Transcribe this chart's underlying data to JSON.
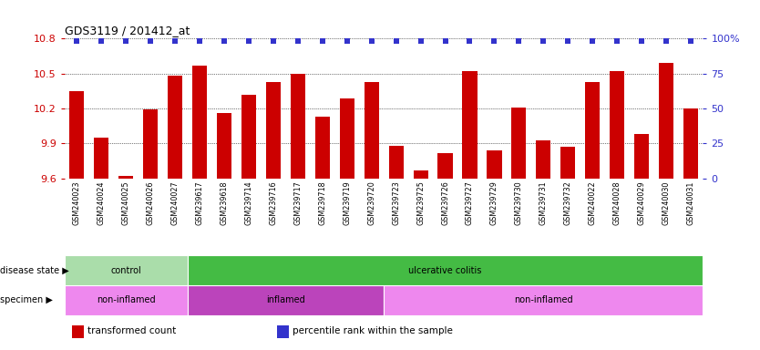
{
  "title": "GDS3119 / 201412_at",
  "samples": [
    "GSM240023",
    "GSM240024",
    "GSM240025",
    "GSM240026",
    "GSM240027",
    "GSM239617",
    "GSM239618",
    "GSM239714",
    "GSM239716",
    "GSM239717",
    "GSM239718",
    "GSM239719",
    "GSM239720",
    "GSM239723",
    "GSM239725",
    "GSM239726",
    "GSM239727",
    "GSM239729",
    "GSM239730",
    "GSM239731",
    "GSM239732",
    "GSM240022",
    "GSM240028",
    "GSM240029",
    "GSM240030",
    "GSM240031"
  ],
  "transformed_counts": [
    10.35,
    9.95,
    9.62,
    10.19,
    10.48,
    10.57,
    10.16,
    10.32,
    10.43,
    10.5,
    10.13,
    10.29,
    10.43,
    9.88,
    9.67,
    9.82,
    10.52,
    9.84,
    10.21,
    9.93,
    9.87,
    10.43,
    10.52,
    9.98,
    10.59,
    10.2
  ],
  "ymin": 9.6,
  "ymax": 10.8,
  "yticks": [
    9.6,
    9.9,
    10.2,
    10.5,
    10.8
  ],
  "right_yticks": [
    0,
    25,
    50,
    75,
    100
  ],
  "bar_color": "#cc0000",
  "dot_color": "#3333cc",
  "disease_state_groups": [
    {
      "label": "control",
      "start": 0,
      "end": 5,
      "color": "#aaddaa"
    },
    {
      "label": "ulcerative colitis",
      "start": 5,
      "end": 26,
      "color": "#44bb44"
    }
  ],
  "specimen_groups": [
    {
      "label": "non-inflamed",
      "start": 0,
      "end": 5,
      "color": "#ee88ee"
    },
    {
      "label": "inflamed",
      "start": 5,
      "end": 13,
      "color": "#bb44bb"
    },
    {
      "label": "non-inflamed",
      "start": 13,
      "end": 26,
      "color": "#ee88ee"
    }
  ],
  "legend_items": [
    {
      "label": "transformed count",
      "color": "#cc0000"
    },
    {
      "label": "percentile rank within the sample",
      "color": "#3333cc"
    }
  ]
}
